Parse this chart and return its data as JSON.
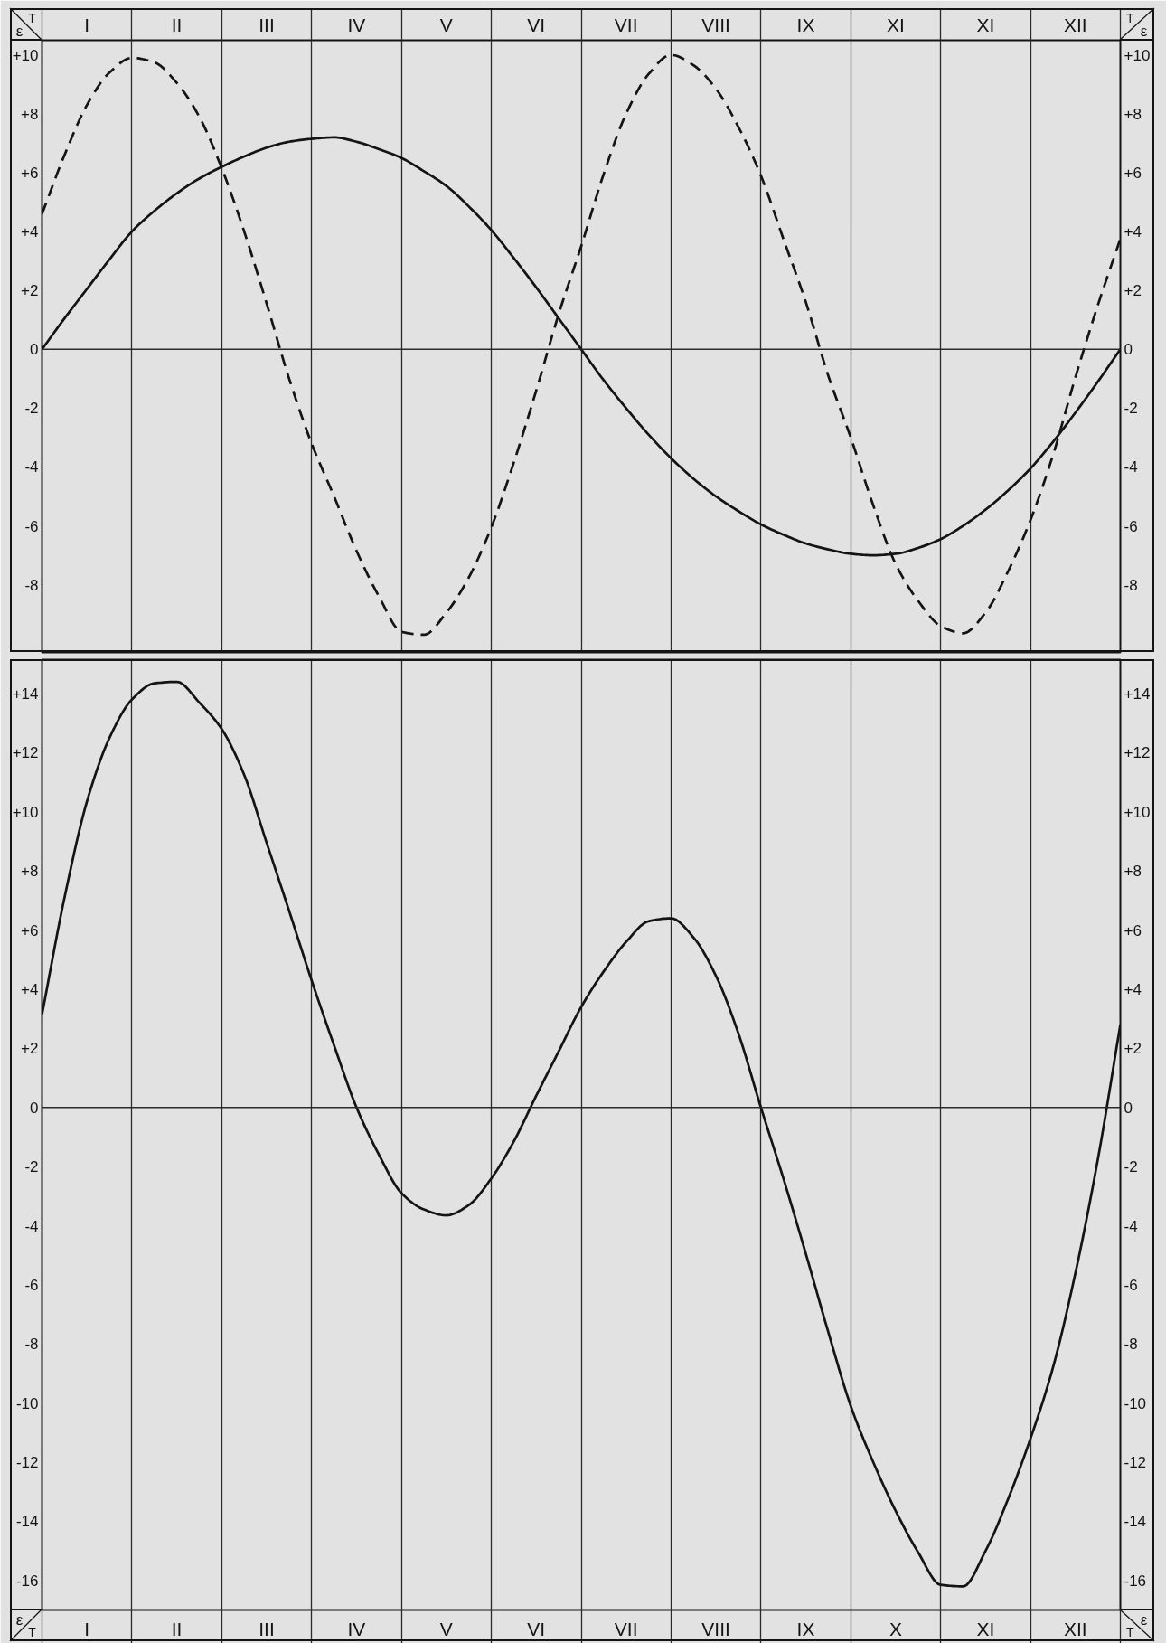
{
  "chart_data": [
    {
      "type": "line",
      "xlabel": "T",
      "ylabel": "ε",
      "y2label": "ε",
      "categories": [
        null,
        null,
        "I",
        null,
        null,
        null,
        "II",
        null,
        null,
        null,
        "III",
        null,
        null,
        null,
        "IV",
        null,
        null,
        null,
        "V",
        null,
        null,
        null,
        "VI",
        null,
        null,
        null,
        "VII",
        null,
        null,
        null,
        "VIII",
        null,
        null,
        null,
        "IX",
        null,
        null,
        null,
        "XI",
        null,
        null,
        null,
        "XI",
        null,
        null,
        null,
        "XII",
        null,
        null
      ],
      "ylim": [
        -10.3,
        10.5
      ],
      "yticks": [
        -8,
        -6,
        -4,
        -2,
        0,
        {
          "value": 2,
          "label": "+2"
        },
        {
          "value": 4,
          "label": "+4"
        },
        {
          "value": 6,
          "label": "+6"
        },
        {
          "value": 8,
          "label": "+8"
        },
        {
          "value": 10,
          "label": "+10"
        }
      ],
      "y2lim": [
        -10.3,
        10.5
      ],
      "y2ticks": [
        -8,
        -6,
        -4,
        -2,
        0,
        {
          "value": 2,
          "label": "+2"
        },
        {
          "value": 4,
          "label": "+4"
        },
        {
          "value": 6,
          "label": "+6"
        },
        {
          "value": 8,
          "label": "+8"
        },
        {
          "value": 10,
          "label": "+10"
        }
      ],
      "grid": "x",
      "ref_lines": [
        {
          "axis": "y",
          "value": 0
        }
      ],
      "series": [
        {
          "color": "#141414",
          "line_style": "solid",
          "values": [
            0,
            1.05,
            2.05,
            3.05,
            4.0,
            4.7,
            5.3,
            5.8,
            6.2,
            6.55,
            6.85,
            7.05,
            7.15,
            7.2,
            7.05,
            6.8,
            6.5,
            6.05,
            5.55,
            4.85,
            4.05,
            3.1,
            2.1,
            1.05,
            0,
            -1.05,
            -2.0,
            -2.9,
            -3.7,
            -4.4,
            -5.0,
            -5.5,
            -5.95,
            -6.3,
            -6.6,
            -6.8,
            -6.95,
            -7.0,
            -6.95,
            -6.75,
            -6.45,
            -6.0,
            -5.45,
            -4.8,
            -4.05,
            -3.15,
            -2.15,
            -1.1,
            0
          ]
        },
        {
          "color": "#141414",
          "line_style": "dashed",
          "values": [
            4.6,
            6.6,
            8.3,
            9.4,
            9.9,
            9.75,
            9.05,
            7.9,
            6.15,
            4.0,
            1.55,
            -1.0,
            -3.2,
            -5.0,
            -6.85,
            -8.4,
            -9.6,
            -9.7,
            -8.95,
            -7.75,
            -6.05,
            -3.85,
            -1.4,
            1.2,
            3.5,
            5.95,
            8.0,
            9.35,
            10.0,
            9.65,
            8.85,
            7.55,
            5.9,
            3.75,
            1.6,
            -0.9,
            -3.0,
            -5.3,
            -7.3,
            -8.55,
            -9.4,
            -9.65,
            -8.95,
            -7.55,
            -5.8,
            -3.6,
            -0.95,
            1.5,
            3.75
          ]
        }
      ]
    },
    {
      "type": "line",
      "xlabel": "T",
      "ylabel": "ε",
      "y2label": "ε",
      "categories": [
        null,
        null,
        "I",
        null,
        null,
        null,
        "II",
        null,
        null,
        null,
        "III",
        null,
        null,
        null,
        "IV",
        null,
        null,
        null,
        "V",
        null,
        null,
        null,
        "VI",
        null,
        null,
        null,
        "VII",
        null,
        null,
        null,
        "VIII",
        null,
        null,
        null,
        "IX",
        null,
        null,
        null,
        "X",
        null,
        null,
        null,
        "XI",
        null,
        null,
        null,
        "XII",
        null,
        null
      ],
      "ylim": [
        -17.0,
        15.15
      ],
      "yticks": [
        -16,
        -14,
        -12,
        -10,
        -8,
        -6,
        -4,
        -2,
        0,
        {
          "value": 2,
          "label": "+2"
        },
        {
          "value": 4,
          "label": "+4"
        },
        {
          "value": 6,
          "label": "+6"
        },
        {
          "value": 8,
          "label": "+8"
        },
        {
          "value": 10,
          "label": "+10"
        },
        {
          "value": 12,
          "label": "+12"
        },
        {
          "value": 14,
          "label": "+14"
        }
      ],
      "y2lim": [
        -17.0,
        15.15
      ],
      "y2ticks": [
        -16,
        -14,
        -12,
        -10,
        -8,
        -6,
        -4,
        -2,
        0,
        {
          "value": 2,
          "label": "+2"
        },
        {
          "value": 4,
          "label": "+4"
        },
        {
          "value": 6,
          "label": "+6"
        },
        {
          "value": 8,
          "label": "+8"
        },
        {
          "value": 10,
          "label": "+10"
        },
        {
          "value": 12,
          "label": "+12"
        },
        {
          "value": 14,
          "label": "+14"
        }
      ],
      "grid": "x",
      "ref_lines": [
        {
          "axis": "y",
          "value": 0
        }
      ],
      "series": [
        {
          "color": "#141414",
          "line_style": "solid",
          "values": [
            3.15,
            7.1,
            10.35,
            12.5,
            13.8,
            14.35,
            14.4,
            13.7,
            12.8,
            11.25,
            8.95,
            6.65,
            4.3,
            2.1,
            0,
            -1.6,
            -2.9,
            -3.45,
            -3.65,
            -3.3,
            -2.4,
            -1.15,
            0.4,
            1.9,
            3.4,
            4.6,
            5.6,
            6.3,
            6.4,
            5.75,
            4.45,
            2.5,
            0,
            -2.4,
            -4.95,
            -7.6,
            -10.1,
            -12.0,
            -13.65,
            -15.05,
            -16.15,
            -16.2,
            -15.0,
            -13.25,
            -11.2,
            -8.8,
            -5.6,
            -1.75,
            2.8
          ]
        }
      ]
    }
  ]
}
